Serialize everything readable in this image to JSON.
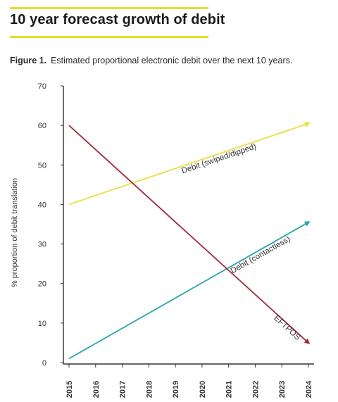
{
  "header": {
    "title": "10 year forecast growth of debit",
    "figure_label": "Figure 1.",
    "figure_caption": "Estimated proportional electronic debit over the next 10 years."
  },
  "colors": {
    "accent": "#e3de2b",
    "swiped": "#e6e23a",
    "contactless": "#2aa5a8",
    "eftpos": "#a3283c",
    "axis": "#333333"
  },
  "chart_data": {
    "type": "line",
    "x": [
      "2015",
      "2016",
      "2017",
      "2018",
      "2019",
      "2020",
      "2021",
      "2022",
      "2023",
      "2024"
    ],
    "ylabel": "% proportion of debit translation",
    "xlabel": "",
    "ylim": [
      0,
      70
    ],
    "yticks": [
      0,
      10,
      20,
      30,
      40,
      50,
      60,
      70
    ],
    "grid": false,
    "series": [
      {
        "name": "Debit (swiped/dipped)",
        "start": [
          "2015",
          40
        ],
        "end": [
          "2024",
          60.5
        ],
        "color_key": "swiped"
      },
      {
        "name": "Debit (contactless)",
        "start": [
          "2015",
          1
        ],
        "end": [
          "2024",
          35.5
        ],
        "color_key": "contactless"
      },
      {
        "name": "EFTPOS",
        "start": [
          "2015",
          60
        ],
        "end": [
          "2024",
          5
        ],
        "color_key": "eftpos"
      }
    ]
  }
}
